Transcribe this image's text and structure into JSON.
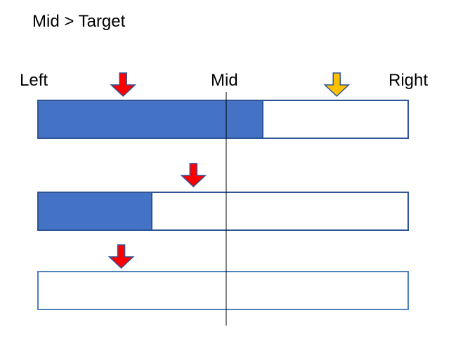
{
  "title": "Mid > Target",
  "labels": {
    "left": "Left",
    "mid": "Mid",
    "right": "Right"
  },
  "colors": {
    "bar_fill": "#4472c4",
    "bar_border": "#2f5597",
    "outline_only_border": "#4f81bd",
    "red_arrow": "#ff0000",
    "red_arrow_border": "#2f5597",
    "orange_arrow": "#ffc000",
    "orange_arrow_border": "#2f5597",
    "mid_line": "#000000"
  },
  "arrow_icons": [
    "down-arrow-icon"
  ],
  "bars": [
    {
      "name": "bar-1",
      "fill_fraction": 0.608,
      "arrows": [
        {
          "name": "red-down-arrow-icon",
          "color_key": "red_arrow",
          "position_fraction": 0.23
        },
        {
          "name": "orange-down-arrow-icon",
          "color_key": "orange_arrow",
          "position_fraction": 0.807
        }
      ]
    },
    {
      "name": "bar-2",
      "fill_fraction": 0.308,
      "arrows": [
        {
          "name": "red-down-arrow-icon",
          "color_key": "red_arrow",
          "position_fraction": 0.42
        }
      ]
    },
    {
      "name": "bar-3",
      "fill_fraction": 0.0,
      "arrows": [
        {
          "name": "red-down-arrow-icon",
          "color_key": "red_arrow",
          "position_fraction": 0.225
        }
      ]
    }
  ]
}
